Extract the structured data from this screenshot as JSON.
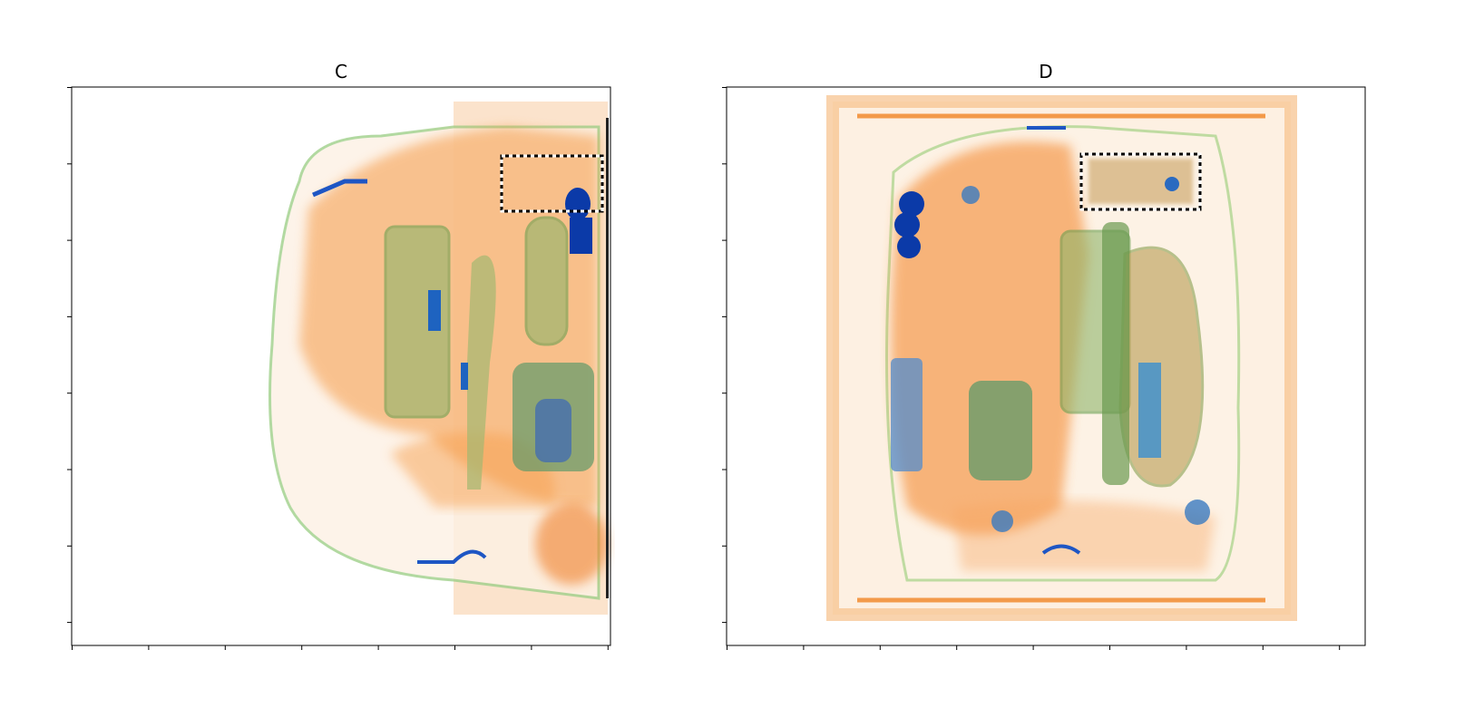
{
  "panels": [
    {
      "title": "C"
    },
    {
      "title": "D"
    }
  ]
}
